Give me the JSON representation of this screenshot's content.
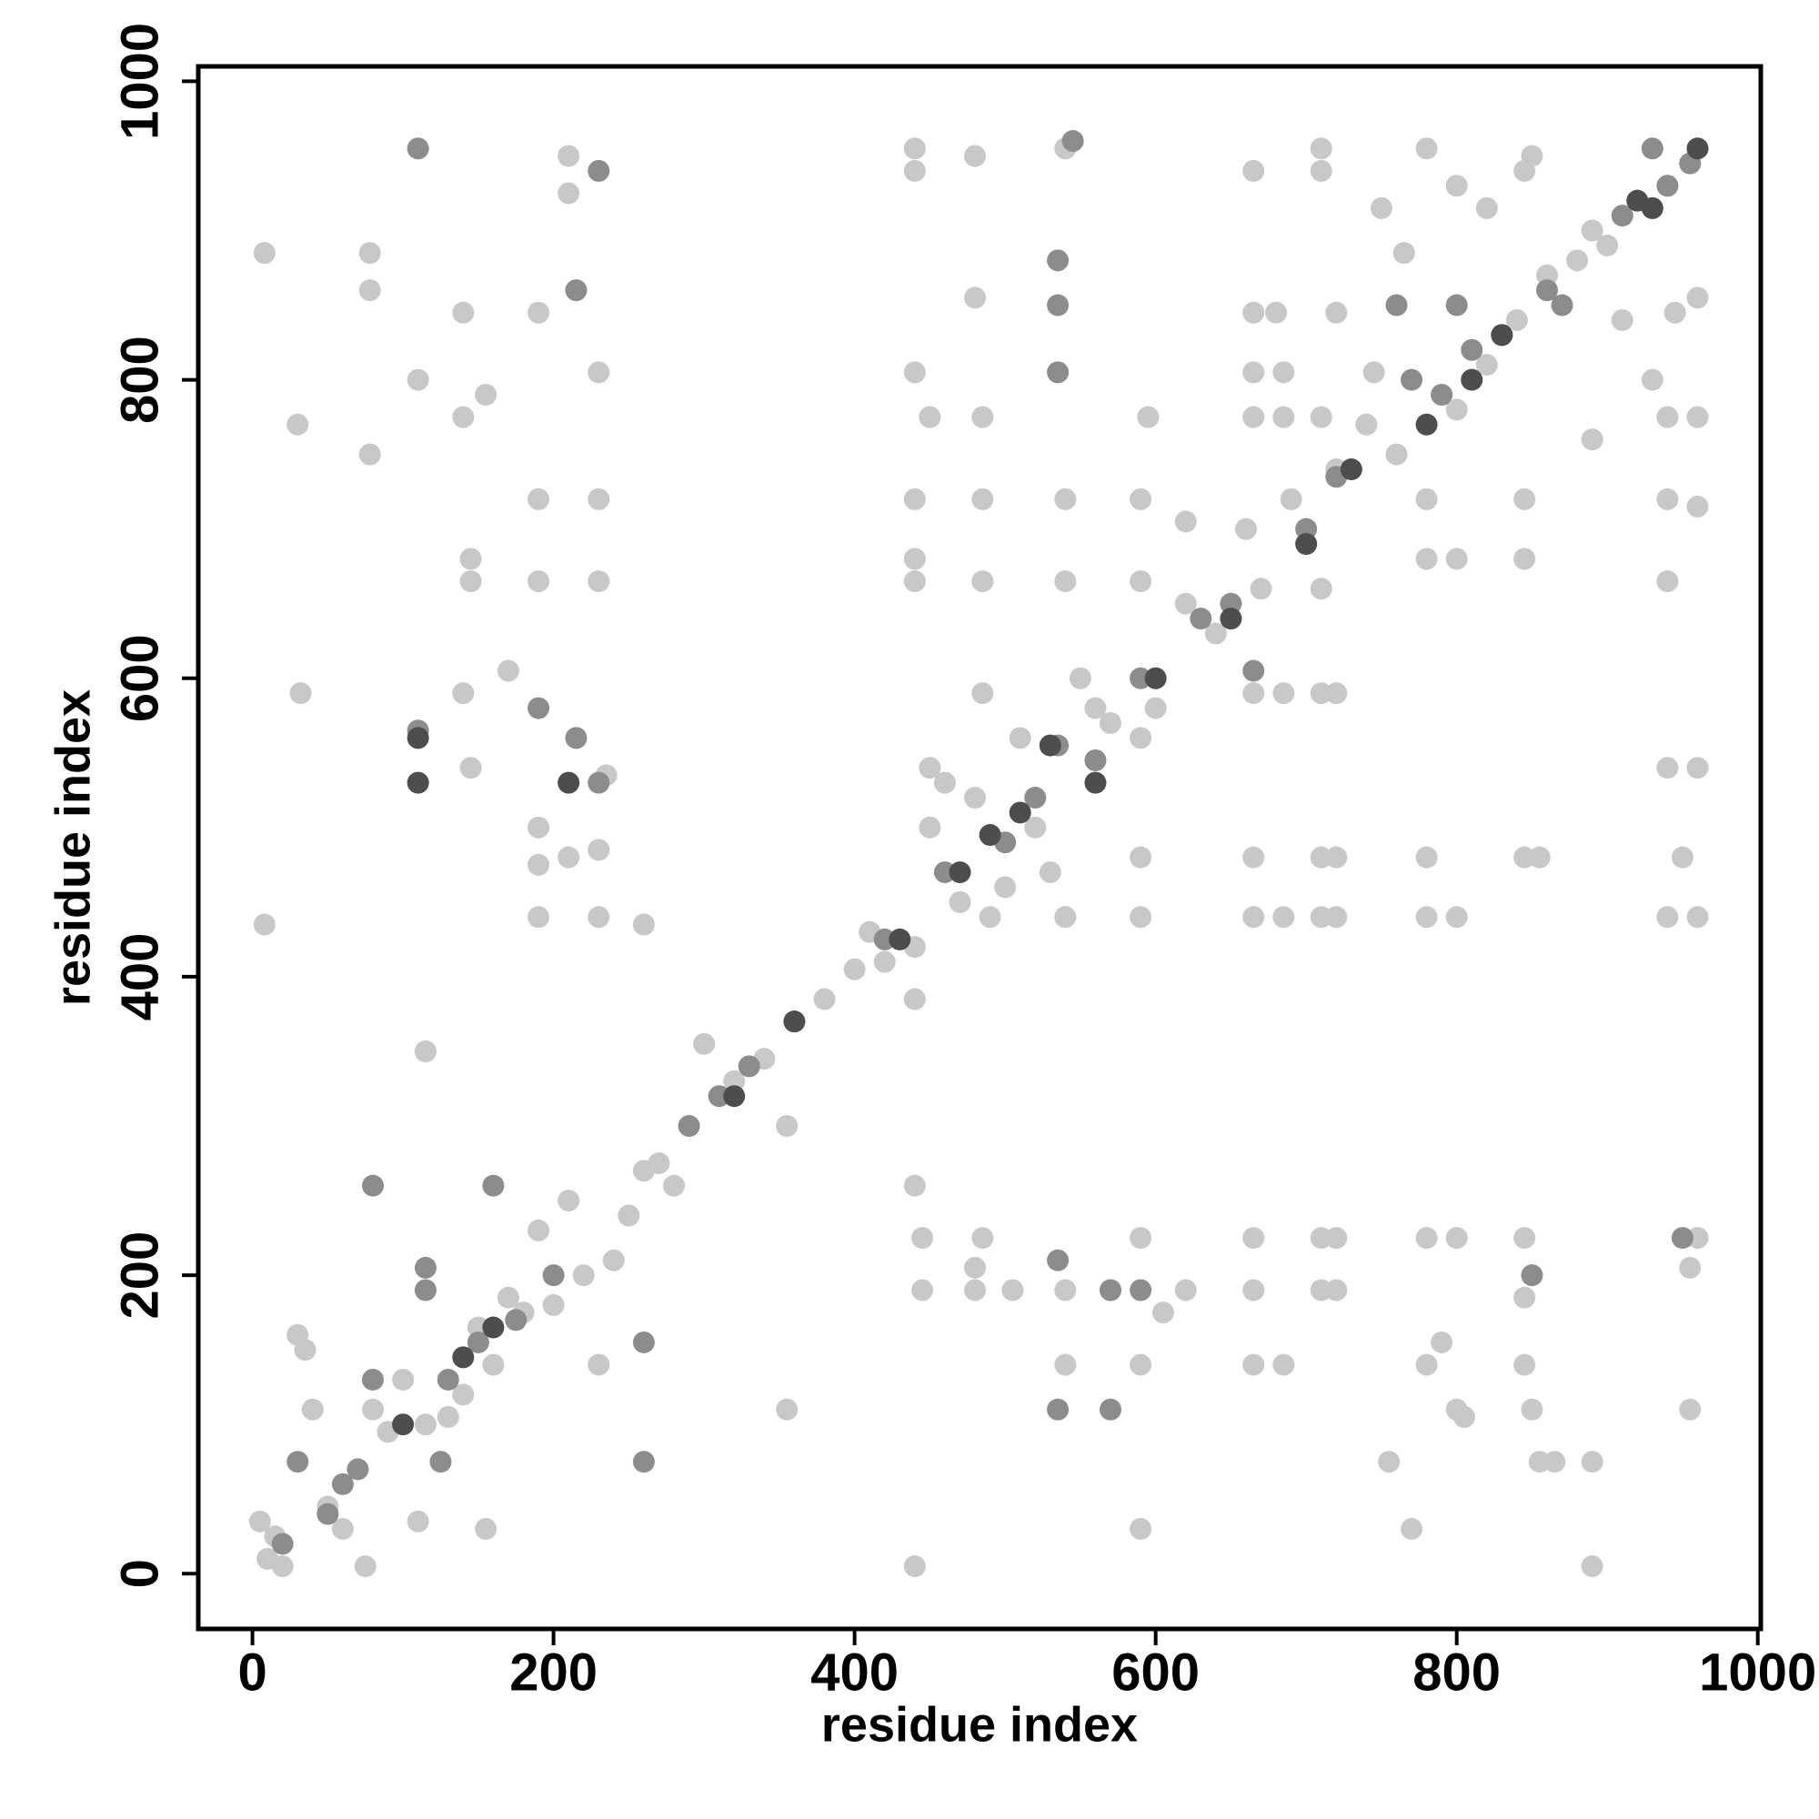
{
  "chart_data": {
    "type": "scatter",
    "xlabel": "residue index",
    "ylabel": "residue index",
    "xlim": [
      -36,
      1002
    ],
    "ylim": [
      -37,
      1010
    ],
    "xticks": [
      0,
      200,
      400,
      600,
      800,
      1000
    ],
    "yticks": [
      0,
      200,
      400,
      600,
      800,
      1000
    ],
    "series": [
      {
        "color": "#c8c8c8",
        "x": [
          5,
          10,
          15,
          20,
          30,
          35,
          40,
          50,
          60,
          75,
          80,
          90,
          100,
          110,
          115,
          130,
          140,
          150,
          160,
          170,
          180,
          190,
          200,
          210,
          220,
          240,
          250,
          260,
          270,
          280,
          300,
          320,
          340,
          355,
          380,
          400,
          410,
          420,
          440,
          450,
          460,
          470,
          480,
          490,
          500,
          510,
          520,
          530,
          540,
          550,
          560,
          570,
          590,
          600,
          620,
          640,
          660,
          670,
          690,
          700,
          710,
          720,
          740,
          760,
          780,
          800,
          820,
          840,
          860,
          880,
          890,
          900,
          920,
          940,
          960,
          8,
          8,
          30,
          32,
          78,
          78,
          78,
          110,
          115,
          140,
          140,
          145,
          145,
          140,
          145,
          155,
          155,
          170,
          190,
          190,
          190,
          190,
          190,
          190,
          210,
          210,
          210,
          230,
          230,
          230,
          230,
          230,
          230,
          235,
          260,
          355,
          440,
          440,
          440,
          440,
          440,
          440,
          440,
          440,
          440,
          445,
          445,
          450,
          450,
          480,
          480,
          480,
          480,
          485,
          485,
          485,
          485,
          485,
          505,
          540,
          540,
          540,
          540,
          540,
          540,
          570,
          590,
          590,
          590,
          590,
          590,
          590,
          590,
          595,
          605,
          620,
          620,
          665,
          665,
          665,
          665,
          665,
          665,
          665,
          665,
          665,
          665,
          680,
          685,
          685,
          685,
          685,
          685,
          710,
          710,
          710,
          710,
          710,
          710,
          710,
          710,
          720,
          720,
          720,
          720,
          720,
          720,
          745,
          750,
          755,
          765,
          770,
          780,
          780,
          780,
          780,
          780,
          780,
          780,
          790,
          800,
          800,
          800,
          800,
          800,
          805,
          820,
          845,
          845,
          845,
          845,
          845,
          845,
          845,
          850,
          850,
          855,
          855,
          865,
          890,
          890,
          890,
          910,
          930,
          940,
          940,
          940,
          940,
          940,
          945,
          950,
          955,
          955,
          960,
          960,
          960,
          960,
          960,
          960
        ],
        "values": [
          35,
          10,
          25,
          5,
          160,
          150,
          110,
          45,
          30,
          5,
          110,
          95,
          130,
          35,
          100,
          105,
          120,
          165,
          140,
          185,
          175,
          230,
          180,
          250,
          200,
          210,
          240,
          270,
          275,
          260,
          355,
          330,
          345,
          300,
          385,
          405,
          430,
          410,
          420,
          500,
          530,
          450,
          520,
          440,
          460,
          560,
          500,
          470,
          440,
          600,
          580,
          570,
          560,
          580,
          650,
          630,
          700,
          660,
          720,
          690,
          660,
          740,
          770,
          750,
          770,
          780,
          810,
          840,
          870,
          880,
          900,
          890,
          920,
          930,
          955,
          885,
          435,
          770,
          590,
          885,
          860,
          750,
          800,
          350,
          845,
          775,
          680,
          665,
          590,
          540,
          790,
          30,
          605,
          845,
          720,
          665,
          500,
          475,
          440,
          950,
          925,
          480,
          805,
          720,
          665,
          485,
          440,
          140,
          535,
          435,
          110,
          955,
          940,
          805,
          720,
          680,
          665,
          385,
          260,
          5,
          225,
          190,
          540,
          775,
          950,
          855,
          205,
          190,
          775,
          720,
          665,
          590,
          225,
          190,
          955,
          720,
          665,
          440,
          190,
          140,
          190,
          720,
          665,
          480,
          440,
          225,
          140,
          30,
          775,
          175,
          190,
          705,
          940,
          845,
          805,
          775,
          590,
          480,
          440,
          225,
          190,
          140,
          845,
          805,
          775,
          590,
          440,
          140,
          955,
          940,
          775,
          590,
          480,
          440,
          225,
          190,
          845,
          590,
          480,
          440,
          225,
          190,
          805,
          915,
          75,
          885,
          30,
          955,
          720,
          680,
          440,
          480,
          225,
          140,
          155,
          930,
          680,
          440,
          225,
          110,
          105,
          915,
          940,
          720,
          680,
          480,
          225,
          185,
          140,
          950,
          110,
          480,
          75,
          75,
          760,
          75,
          5,
          840,
          800,
          775,
          720,
          665,
          540,
          440,
          845,
          480,
          205,
          110,
          855,
          775,
          715,
          540,
          440,
          225
        ]
      },
      {
        "color": "#8c8c8c",
        "x": [
          20,
          30,
          50,
          60,
          70,
          80,
          80,
          110,
          110,
          115,
          115,
          125,
          130,
          150,
          160,
          175,
          190,
          200,
          215,
          215,
          230,
          230,
          260,
          260,
          290,
          310,
          330,
          360,
          420,
          460,
          500,
          520,
          535,
          535,
          535,
          535,
          535,
          535,
          545,
          560,
          570,
          570,
          590,
          590,
          630,
          650,
          665,
          700,
          720,
          760,
          770,
          790,
          800,
          810,
          830,
          850,
          860,
          870,
          910,
          930,
          940,
          950,
          955
        ],
        "values": [
          20,
          75,
          40,
          60,
          70,
          130,
          260,
          955,
          565,
          190,
          205,
          75,
          130,
          155,
          260,
          170,
          580,
          200,
          860,
          560,
          940,
          530,
          155,
          75,
          300,
          320,
          340,
          370,
          425,
          470,
          490,
          520,
          880,
          850,
          805,
          555,
          210,
          110,
          960,
          545,
          190,
          110,
          600,
          190,
          640,
          650,
          605,
          700,
          735,
          850,
          800,
          790,
          850,
          820,
          830,
          200,
          860,
          850,
          910,
          955,
          930,
          225,
          945
        ]
      },
      {
        "color": "#4d4d4d",
        "x": [
          100,
          110,
          110,
          140,
          160,
          210,
          320,
          360,
          430,
          470,
          490,
          510,
          530,
          560,
          600,
          650,
          700,
          730,
          780,
          810,
          830,
          920,
          930,
          960
        ],
        "values": [
          100,
          530,
          560,
          145,
          165,
          530,
          320,
          370,
          425,
          470,
          495,
          510,
          555,
          530,
          600,
          640,
          690,
          740,
          770,
          800,
          830,
          920,
          915,
          955
        ]
      }
    ]
  }
}
